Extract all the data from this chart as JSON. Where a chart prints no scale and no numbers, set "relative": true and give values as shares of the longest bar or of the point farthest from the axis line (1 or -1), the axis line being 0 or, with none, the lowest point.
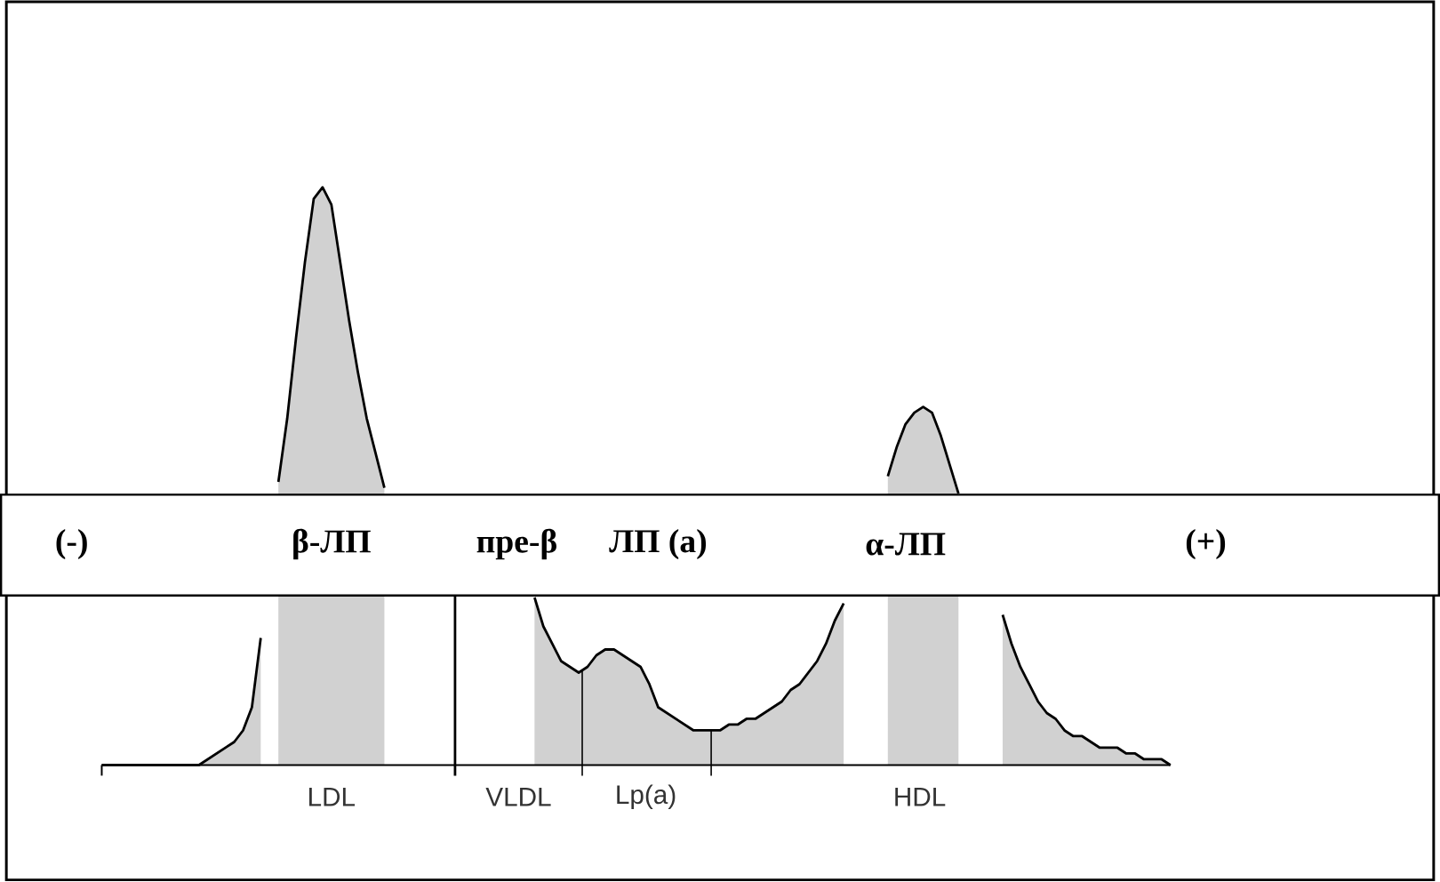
{
  "chart_data": {
    "type": "area",
    "relative": true,
    "categories": [
      null,
      null,
      null,
      null,
      null,
      null,
      null,
      null,
      null,
      null,
      null,
      null,
      null,
      null,
      null,
      null,
      null,
      null,
      null,
      null,
      null,
      null,
      null,
      null,
      null,
      null,
      null,
      null,
      null,
      null,
      null,
      null,
      null,
      null,
      null,
      null,
      null,
      null,
      null,
      null,
      null,
      null,
      null,
      null,
      null,
      null,
      null,
      null,
      null,
      null,
      null,
      null,
      null,
      null,
      null,
      null,
      null,
      null,
      null,
      null,
      null,
      null,
      null,
      null,
      null,
      null,
      null,
      null,
      null,
      null,
      null,
      null,
      null,
      null,
      null,
      null,
      null,
      null,
      null,
      null,
      null,
      null,
      null,
      null,
      null,
      null,
      null,
      null,
      null,
      null,
      null,
      null,
      null,
      null,
      null,
      null,
      null,
      null,
      null,
      null,
      null,
      null,
      null,
      null,
      null,
      null,
      null,
      null,
      null,
      null,
      null,
      null,
      null,
      null,
      null,
      null,
      null,
      null,
      null,
      null,
      null,
      null
    ],
    "values": [
      0,
      0,
      0,
      0,
      0,
      0,
      0,
      0,
      0,
      0,
      0,
      0,
      0.01,
      0.02,
      0.03,
      0.04,
      0.06,
      0.1,
      0.22,
      null,
      0.49,
      0.6,
      0.74,
      0.87,
      0.98,
      1.0,
      0.97,
      0.87,
      0.77,
      0.68,
      0.6,
      0.54,
      0.48,
      null,
      null,
      null,
      null,
      null,
      null,
      null,
      null,
      null,
      null,
      null,
      null,
      null,
      null,
      null,
      null,
      0.29,
      0.24,
      0.21,
      0.18,
      0.17,
      0.16,
      0.17,
      0.19,
      0.2,
      0.2,
      0.19,
      0.18,
      0.17,
      0.14,
      0.1,
      0.09,
      0.08,
      0.07,
      0.06,
      0.06,
      0.06,
      0.06,
      0.07,
      0.07,
      0.08,
      0.08,
      0.09,
      0.1,
      0.11,
      0.13,
      0.14,
      0.16,
      0.18,
      0.21,
      0.25,
      0.28,
      null,
      null,
      null,
      null,
      0.5,
      0.55,
      0.59,
      0.61,
      0.62,
      0.61,
      0.57,
      0.52,
      0.47,
      null,
      null,
      null,
      null,
      0.26,
      0.21,
      0.17,
      0.14,
      0.11,
      0.09,
      0.08,
      0.06,
      0.05,
      0.05,
      0.04,
      0.03,
      0.03,
      0.03,
      0.02,
      0.02,
      0.01,
      0.01,
      0.01,
      0
    ],
    "color": "#000000",
    "annotations": [
      "(-)",
      "β-ЛП",
      "пре-β",
      "ЛП (а)",
      "α-ЛП",
      "(+)",
      "LDL",
      "VLDL",
      "Lp(a)",
      "HDL"
    ]
  }
}
